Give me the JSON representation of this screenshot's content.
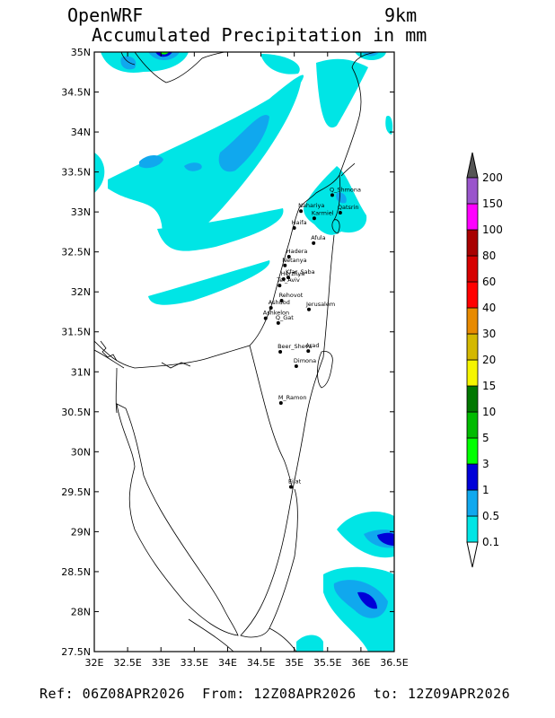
{
  "header": {
    "model": "OpenWRF",
    "field": "Accumulated Precipitation in mm",
    "resolution": "9km"
  },
  "footer": {
    "ref_label": "Ref:",
    "ref": "06Z08APR2026",
    "from_label": "From:",
    "from": "12Z08APR2026",
    "to_label": "to:",
    "to": "12Z09APR2026"
  },
  "map": {
    "lat_labels": [
      "35N",
      "34.5N",
      "34N",
      "33.5N",
      "33N",
      "32.5N",
      "32N",
      "31.5N",
      "31N",
      "30.5N",
      "30N",
      "29.5N",
      "29N",
      "28.5N",
      "28N",
      "27.5N"
    ],
    "lon_labels": [
      "32E",
      "32.5E",
      "33E",
      "33.5E",
      "34E",
      "34.5E",
      "35E",
      "35.5E",
      "36E",
      "36.5E"
    ],
    "lon_range": [
      32,
      36.5
    ],
    "lat_range": [
      27.5,
      35
    ],
    "cities": [
      {
        "name": "Q_Shmona",
        "lon": 35.57,
        "lat": 33.21
      },
      {
        "name": "Nahariya",
        "lon": 35.1,
        "lat": 33.01
      },
      {
        "name": "Karmiel",
        "lon": 35.3,
        "lat": 32.92
      },
      {
        "name": "Qatsrin",
        "lon": 35.69,
        "lat": 32.99
      },
      {
        "name": "Haifa",
        "lon": 35.0,
        "lat": 32.8
      },
      {
        "name": "Afula",
        "lon": 35.29,
        "lat": 32.61
      },
      {
        "name": "Hadera",
        "lon": 34.92,
        "lat": 32.44
      },
      {
        "name": "Netanya",
        "lon": 34.86,
        "lat": 32.33
      },
      {
        "name": "Herzliya",
        "lon": 34.84,
        "lat": 32.16
      },
      {
        "name": "Kfar_Saba",
        "lon": 34.91,
        "lat": 32.18
      },
      {
        "name": "Tel_Aviv",
        "lon": 34.78,
        "lat": 32.08
      },
      {
        "name": "Rehovot",
        "lon": 34.81,
        "lat": 31.89
      },
      {
        "name": "Ashdod",
        "lon": 34.65,
        "lat": 31.8
      },
      {
        "name": "Ashkelon",
        "lon": 34.57,
        "lat": 31.67
      },
      {
        "name": "Q_Gat",
        "lon": 34.76,
        "lat": 31.61
      },
      {
        "name": "Jerusalem",
        "lon": 35.22,
        "lat": 31.78
      },
      {
        "name": "Beer_Sheva",
        "lon": 34.79,
        "lat": 31.25
      },
      {
        "name": "Arad",
        "lon": 35.21,
        "lat": 31.26
      },
      {
        "name": "Dimona",
        "lon": 35.03,
        "lat": 31.07
      },
      {
        "name": "M_Ramon",
        "lon": 34.8,
        "lat": 30.61
      },
      {
        "name": "Eilat",
        "lon": 34.95,
        "lat": 29.56
      }
    ]
  },
  "legend": {
    "levels": [
      "0.1",
      "0.5",
      "1",
      "3",
      "5",
      "10",
      "15",
      "20",
      "30",
      "40",
      "60",
      "80",
      "100",
      "150",
      "200"
    ],
    "colors": [
      "#00e5e5",
      "#10a8ee",
      "#0000d8",
      "#00ff00",
      "#00bb00",
      "#007700",
      "#f5f500",
      "#d4b800",
      "#e88a00",
      "#ff0000",
      "#d60000",
      "#a80000",
      "#ff00ff",
      "#9a55cc"
    ],
    "over_color": "#555555"
  }
}
